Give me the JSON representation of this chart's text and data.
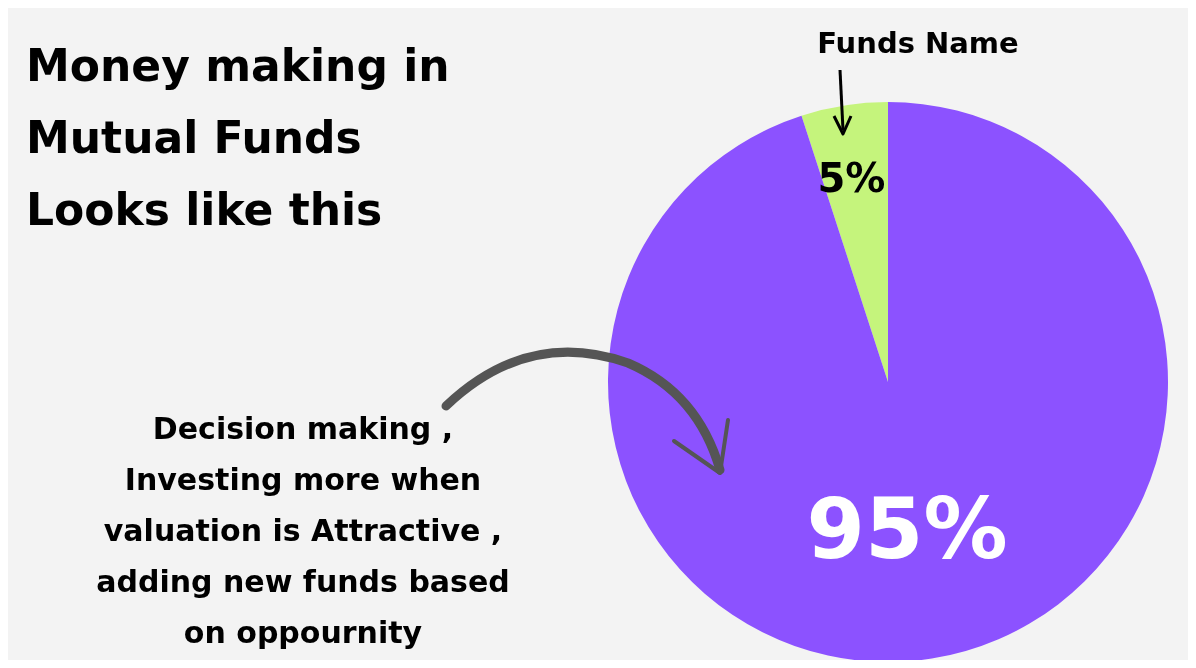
{
  "chart_data": {
    "type": "pie",
    "title": "Money making in Mutual Funds Looks like this",
    "categories": [
      "Funds Name",
      "Decision making , Investing more when valuation is Attractive , adding new funds based on oppournity"
    ],
    "values": [
      5,
      95
    ],
    "colors": [
      "#c5f47c",
      "#8c52ff"
    ],
    "value_labels": [
      "5%",
      "95%"
    ]
  }
}
